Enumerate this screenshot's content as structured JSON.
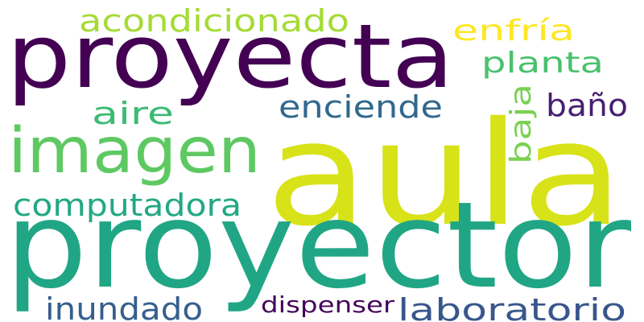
{
  "word_cloud": {
    "words": [
      {
        "id": "aula",
        "text": "aula",
        "color": "#d8e219"
      },
      {
        "id": "proyector",
        "text": "proyector",
        "color": "#21a685"
      },
      {
        "id": "proyecta",
        "text": "proyecta",
        "color": "#440154"
      },
      {
        "id": "imagen",
        "text": "imagen",
        "color": "#5ec962"
      },
      {
        "id": "acondicionado",
        "text": "acondicionado",
        "color": "#a5db36"
      },
      {
        "id": "enfria",
        "text": "enfría",
        "color": "#fde725"
      },
      {
        "id": "planta",
        "text": "planta",
        "color": "#4ac16d"
      },
      {
        "id": "enciende",
        "text": "enciende",
        "color": "#31688e"
      },
      {
        "id": "aire",
        "text": "aire",
        "color": "#3bbb75"
      },
      {
        "id": "bano",
        "text": "baño",
        "color": "#481f70"
      },
      {
        "id": "baja",
        "text": "baja",
        "color": "#7ad151"
      },
      {
        "id": "computadora",
        "text": "computadora",
        "color": "#22a884"
      },
      {
        "id": "inundado",
        "text": "inundado",
        "color": "#355f8d"
      },
      {
        "id": "dispenser",
        "text": "dispenser",
        "color": "#450559"
      },
      {
        "id": "laboratorio",
        "text": "laboratorio",
        "color": "#39568c"
      }
    ]
  }
}
